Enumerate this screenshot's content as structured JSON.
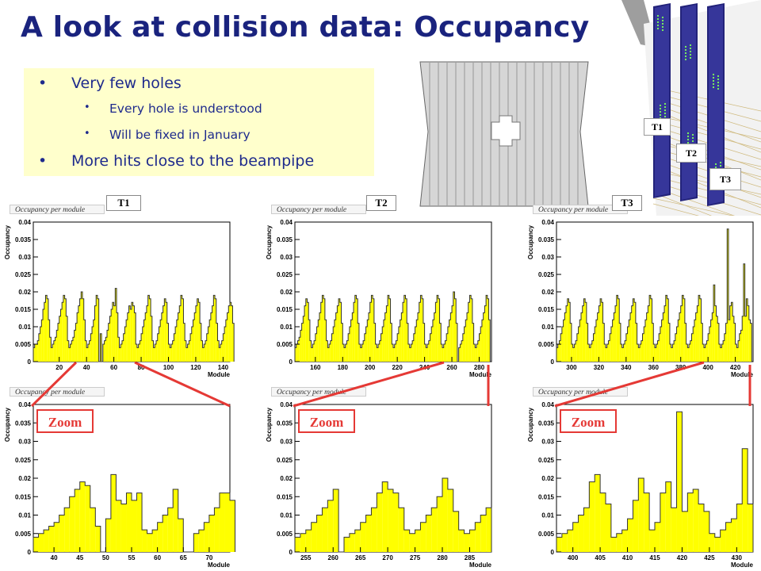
{
  "page": {
    "title": "A look at collision data: Occupancy",
    "bullets": [
      {
        "level": 1,
        "text": "Very few holes"
      },
      {
        "level": 2,
        "text": "Every hole is understood"
      },
      {
        "level": 2,
        "text": "Will be fixed in January"
      },
      {
        "level": 1,
        "text": "More hits close to the beampipe"
      }
    ],
    "detector_labels": [
      "T1",
      "T2",
      "T3"
    ],
    "zoom_label": "Zoom"
  },
  "colors": {
    "title": "#1a237e",
    "bullet_bg": "#ffffcc",
    "hist_fill": "#ffff00",
    "hist_line": "#333333",
    "zoom": "#e53935"
  },
  "chart_data": [
    {
      "type": "bar",
      "panel_label": "T1",
      "stat_label": "Occupancy per module",
      "xlabel": "Module",
      "ylabel": "Occupancy",
      "xlim": [
        1,
        145
      ],
      "ylim": [
        0,
        0.04
      ],
      "xticks": [
        20,
        40,
        60,
        80,
        100,
        120,
        140
      ],
      "yticks": [
        0,
        0.005,
        0.01,
        0.015,
        0.02,
        0.025,
        0.03,
        0.035,
        0.04
      ],
      "ytick_labels": [
        "0",
        "0.005",
        "0.01",
        "0.015",
        "0.02",
        "0.025",
        "0.03",
        "0.035",
        "0.04"
      ],
      "start": 1,
      "values": [
        0.004,
        0.005,
        0.005,
        0.006,
        0.008,
        0.01,
        0.012,
        0.015,
        0.017,
        0.019,
        0.018,
        0.012,
        0.007,
        0.004,
        0.005,
        0.006,
        0.007,
        0.009,
        0.011,
        0.013,
        0.015,
        0.017,
        0.019,
        0.018,
        0.013,
        0.006,
        0.004,
        0.005,
        0.006,
        0.007,
        0.009,
        0.011,
        0.014,
        0.016,
        0.018,
        0.02,
        0.018,
        0.012,
        0.006,
        0.004,
        0.005,
        0.006,
        0.008,
        0.01,
        0.012,
        0.016,
        0.019,
        0.018,
        0.0,
        0.008,
        0.0,
        0.005,
        0.006,
        0.007,
        0.009,
        0.011,
        0.013,
        0.015,
        0.017,
        0.016,
        0.021,
        0.014,
        0.007,
        0.004,
        0.005,
        0.006,
        0.008,
        0.01,
        0.012,
        0.014,
        0.016,
        0.015,
        0.017,
        0.016,
        0.014,
        0.005,
        0.004,
        0.005,
        0.006,
        0.008,
        0.01,
        0.012,
        0.014,
        0.016,
        0.019,
        0.018,
        0.013,
        0.006,
        0.004,
        0.005,
        0.006,
        0.008,
        0.01,
        0.012,
        0.014,
        0.016,
        0.018,
        0.017,
        0.011,
        0.005,
        0.004,
        0.005,
        0.006,
        0.008,
        0.01,
        0.012,
        0.014,
        0.016,
        0.019,
        0.018,
        0.011,
        0.006,
        0.004,
        0.005,
        0.006,
        0.008,
        0.01,
        0.012,
        0.014,
        0.016,
        0.018,
        0.017,
        0.011,
        0.006,
        0.004,
        0.005,
        0.006,
        0.008,
        0.01,
        0.012,
        0.014,
        0.016,
        0.019,
        0.018,
        0.011,
        0.006,
        0.004,
        0.005,
        0.006,
        0.008,
        0.01,
        0.012,
        0.014,
        0.016,
        0.017,
        0.016,
        0.011
      ]
    },
    {
      "type": "bar",
      "panel_label": "T2",
      "stat_label": "Occupancy per module",
      "xlabel": "Module",
      "ylabel": "Occupancy",
      "xlim": [
        145,
        289
      ],
      "ylim": [
        0,
        0.04
      ],
      "xticks": [
        160,
        180,
        200,
        220,
        240,
        260,
        280
      ],
      "yticks": [
        0,
        0.005,
        0.01,
        0.015,
        0.02,
        0.025,
        0.03,
        0.035,
        0.04
      ],
      "ytick_labels": [
        "0",
        "0.005",
        "0.01",
        "0.015",
        "0.02",
        "0.025",
        "0.03",
        "0.035",
        "0.04"
      ],
      "start": 145,
      "values": [
        0.004,
        0.005,
        0.006,
        0.007,
        0.009,
        0.011,
        0.013,
        0.016,
        0.018,
        0.017,
        0.012,
        0.006,
        0.004,
        0.005,
        0.006,
        0.008,
        0.01,
        0.012,
        0.014,
        0.017,
        0.019,
        0.018,
        0.012,
        0.006,
        0.004,
        0.005,
        0.006,
        0.008,
        0.01,
        0.012,
        0.014,
        0.016,
        0.018,
        0.017,
        0.011,
        0.005,
        0.004,
        0.005,
        0.006,
        0.008,
        0.01,
        0.012,
        0.014,
        0.017,
        0.019,
        0.018,
        0.011,
        0.005,
        0.004,
        0.005,
        0.006,
        0.008,
        0.01,
        0.012,
        0.014,
        0.017,
        0.019,
        0.018,
        0.011,
        0.005,
        0.004,
        0.005,
        0.006,
        0.008,
        0.01,
        0.012,
        0.014,
        0.016,
        0.019,
        0.018,
        0.011,
        0.005,
        0.004,
        0.005,
        0.006,
        0.008,
        0.01,
        0.012,
        0.014,
        0.017,
        0.019,
        0.018,
        0.011,
        0.005,
        0.004,
        0.005,
        0.006,
        0.008,
        0.01,
        0.012,
        0.014,
        0.017,
        0.019,
        0.018,
        0.011,
        0.005,
        0.004,
        0.005,
        0.006,
        0.008,
        0.01,
        0.012,
        0.014,
        0.017,
        0.019,
        0.018,
        0.011,
        0.005,
        0.004,
        0.005,
        0.006,
        0.008,
        0.01,
        0.012,
        0.014,
        0.016,
        0.02,
        0.018,
        0.011,
        0.0,
        0.004,
        0.005,
        0.006,
        0.008,
        0.01,
        0.012,
        0.014,
        0.017,
        0.019,
        0.018,
        0.011,
        0.005,
        0.004,
        0.005,
        0.006,
        0.008,
        0.01,
        0.012,
        0.014,
        0.016,
        0.019,
        0.018,
        0.012
      ]
    },
    {
      "type": "bar",
      "panel_label": "T3",
      "stat_label": "Occupancy per module",
      "xlabel": "Module",
      "ylabel": "Occupancy",
      "xlim": [
        289,
        433
      ],
      "ylim": [
        0,
        0.04
      ],
      "xticks": [
        300,
        320,
        340,
        360,
        380,
        400,
        420
      ],
      "yticks": [
        0,
        0.005,
        0.01,
        0.015,
        0.02,
        0.025,
        0.03,
        0.035,
        0.04
      ],
      "ytick_labels": [
        "0",
        "0.005",
        "0.01",
        "0.015",
        "0.02",
        "0.025",
        "0.03",
        "0.035",
        "0.04"
      ],
      "start": 289,
      "values": [
        0.004,
        0.005,
        0.006,
        0.008,
        0.01,
        0.012,
        0.014,
        0.016,
        0.018,
        0.017,
        0.011,
        0.005,
        0.004,
        0.005,
        0.006,
        0.008,
        0.01,
        0.012,
        0.014,
        0.016,
        0.018,
        0.017,
        0.011,
        0.005,
        0.004,
        0.005,
        0.006,
        0.008,
        0.01,
        0.012,
        0.014,
        0.016,
        0.018,
        0.017,
        0.011,
        0.005,
        0.004,
        0.005,
        0.006,
        0.008,
        0.01,
        0.012,
        0.014,
        0.016,
        0.019,
        0.018,
        0.011,
        0.005,
        0.004,
        0.005,
        0.006,
        0.008,
        0.01,
        0.012,
        0.014,
        0.016,
        0.018,
        0.017,
        0.011,
        0.005,
        0.004,
        0.005,
        0.006,
        0.008,
        0.01,
        0.012,
        0.014,
        0.016,
        0.019,
        0.018,
        0.011,
        0.005,
        0.004,
        0.005,
        0.006,
        0.008,
        0.01,
        0.012,
        0.014,
        0.016,
        0.019,
        0.018,
        0.011,
        0.005,
        0.004,
        0.005,
        0.006,
        0.008,
        0.01,
        0.012,
        0.014,
        0.016,
        0.019,
        0.018,
        0.011,
        0.005,
        0.004,
        0.005,
        0.006,
        0.008,
        0.01,
        0.012,
        0.014,
        0.016,
        0.019,
        0.018,
        0.011,
        0.005,
        0.004,
        0.005,
        0.006,
        0.008,
        0.01,
        0.012,
        0.014,
        0.022,
        0.016,
        0.013,
        0.011,
        0.005,
        0.004,
        0.005,
        0.006,
        0.008,
        0.011,
        0.038,
        0.012,
        0.016,
        0.017,
        0.013,
        0.011,
        0.005,
        0.004,
        0.006,
        0.008,
        0.009,
        0.013,
        0.028,
        0.013,
        0.018,
        0.016,
        0.012,
        0.011
      ]
    },
    {
      "type": "bar",
      "panel_label": "T1 zoom",
      "stat_label": "Occupancy per module",
      "xlabel": "Module",
      "ylabel": "Occupancy",
      "xlim": [
        36,
        74
      ],
      "ylim": [
        0,
        0.04
      ],
      "xticks": [
        40,
        45,
        50,
        55,
        60,
        65,
        70
      ],
      "yticks": [
        0,
        0.005,
        0.01,
        0.015,
        0.02,
        0.025,
        0.03,
        0.035,
        0.04
      ],
      "ytick_labels": [
        "0",
        "0.005",
        "0.01",
        "0.015",
        "0.02",
        "0.025",
        "0.03",
        "0.035",
        "0.04"
      ],
      "start": 36,
      "values": [
        0.004,
        0.005,
        0.006,
        0.007,
        0.008,
        0.01,
        0.012,
        0.015,
        0.017,
        0.019,
        0.018,
        0.012,
        0.007,
        0.0,
        0.009,
        0.021,
        0.014,
        0.013,
        0.016,
        0.014,
        0.016,
        0.006,
        0.005,
        0.006,
        0.008,
        0.01,
        0.012,
        0.017,
        0.009,
        0.0,
        0.0,
        0.005,
        0.006,
        0.008,
        0.01,
        0.012,
        0.016,
        0.016,
        0.014
      ]
    },
    {
      "type": "bar",
      "panel_label": "T2 zoom",
      "stat_label": "Occupancy per module",
      "xlabel": "Module",
      "ylabel": "Occupancy",
      "xlim": [
        253,
        289
      ],
      "ylim": [
        0,
        0.04
      ],
      "xticks": [
        255,
        260,
        265,
        270,
        275,
        280,
        285
      ],
      "yticks": [
        0,
        0.005,
        0.01,
        0.015,
        0.02,
        0.025,
        0.03,
        0.035,
        0.04
      ],
      "ytick_labels": [
        "0",
        "0.005",
        "0.01",
        "0.015",
        "0.02",
        "0.025",
        "0.03",
        "0.035",
        "0.04"
      ],
      "start": 253,
      "values": [
        0.004,
        0.005,
        0.006,
        0.008,
        0.01,
        0.012,
        0.014,
        0.017,
        0.0,
        0.004,
        0.005,
        0.006,
        0.008,
        0.01,
        0.012,
        0.016,
        0.019,
        0.017,
        0.016,
        0.012,
        0.006,
        0.005,
        0.006,
        0.008,
        0.01,
        0.012,
        0.015,
        0.02,
        0.017,
        0.011,
        0.006,
        0.005,
        0.006,
        0.008,
        0.01,
        0.012
      ]
    },
    {
      "type": "bar",
      "panel_label": "T3 zoom",
      "stat_label": "Occupancy per module",
      "xlabel": "Module",
      "ylabel": "Occupancy",
      "xlim": [
        397,
        433
      ],
      "ylim": [
        0,
        0.04
      ],
      "xticks": [
        400,
        405,
        410,
        415,
        420,
        425,
        430
      ],
      "yticks": [
        0,
        0.005,
        0.01,
        0.015,
        0.02,
        0.025,
        0.03,
        0.035,
        0.04
      ],
      "ytick_labels": [
        "0",
        "0.005",
        "0.01",
        "0.015",
        "0.02",
        "0.025",
        "0.03",
        "0.035",
        "0.04"
      ],
      "start": 397,
      "values": [
        0.004,
        0.005,
        0.006,
        0.008,
        0.01,
        0.012,
        0.019,
        0.021,
        0.016,
        0.013,
        0.004,
        0.005,
        0.006,
        0.009,
        0.014,
        0.02,
        0.016,
        0.006,
        0.008,
        0.016,
        0.019,
        0.012,
        0.038,
        0.011,
        0.016,
        0.017,
        0.013,
        0.011,
        0.005,
        0.004,
        0.006,
        0.008,
        0.009,
        0.013,
        0.028,
        0.013
      ]
    }
  ]
}
